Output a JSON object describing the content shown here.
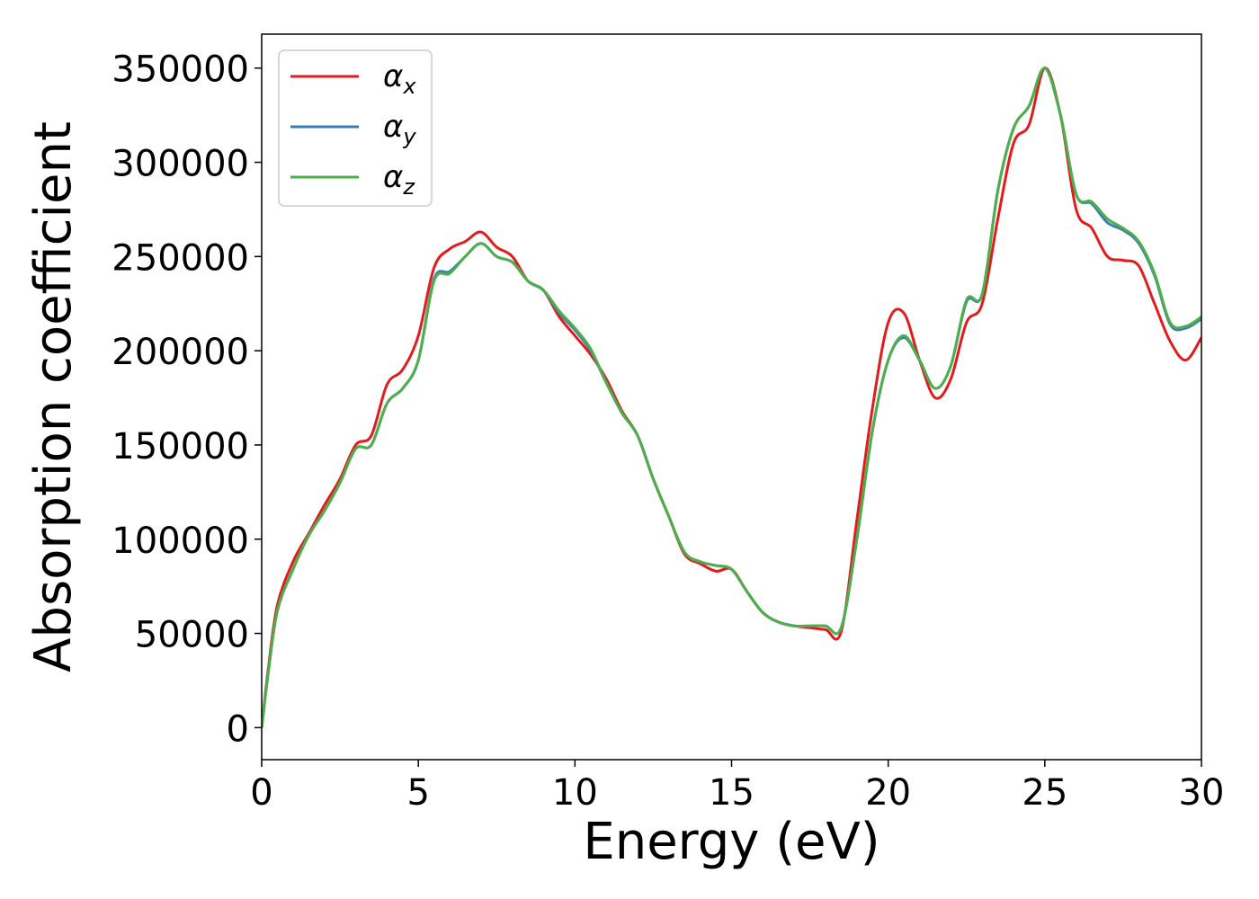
{
  "chart_data": {
    "type": "line",
    "title": "",
    "xlabel": "Energy (eV)",
    "ylabel": "Absorption coefficient",
    "xlim": [
      0,
      30
    ],
    "ylim": [
      -17000,
      368000
    ],
    "xticks": [
      0,
      5,
      10,
      15,
      20,
      25,
      30
    ],
    "yticks": [
      0,
      50000,
      100000,
      150000,
      200000,
      250000,
      300000,
      350000
    ],
    "grid": false,
    "legend_position": "top-left",
    "series": [
      {
        "name": "α",
        "subscript": "x",
        "color": "#e41a1c",
        "points": [
          [
            0,
            0
          ],
          [
            0.2,
            30000
          ],
          [
            0.5,
            65000
          ],
          [
            1,
            88000
          ],
          [
            1.5,
            103000
          ],
          [
            2,
            118000
          ],
          [
            2.5,
            132000
          ],
          [
            3,
            150000
          ],
          [
            3.5,
            155000
          ],
          [
            4,
            182000
          ],
          [
            4.5,
            190000
          ],
          [
            5,
            208000
          ],
          [
            5.5,
            244000
          ],
          [
            6,
            254000
          ],
          [
            6.5,
            258000
          ],
          [
            7,
            263000
          ],
          [
            7.5,
            255000
          ],
          [
            8,
            250000
          ],
          [
            8.5,
            237000
          ],
          [
            9,
            232000
          ],
          [
            9.5,
            218000
          ],
          [
            10,
            208000
          ],
          [
            10.5,
            198000
          ],
          [
            11,
            185000
          ],
          [
            11.5,
            168000
          ],
          [
            12,
            155000
          ],
          [
            12.5,
            132000
          ],
          [
            13,
            112000
          ],
          [
            13.5,
            92000
          ],
          [
            14,
            87000
          ],
          [
            14.5,
            83000
          ],
          [
            15,
            84000
          ],
          [
            15.5,
            72000
          ],
          [
            16,
            61000
          ],
          [
            16.5,
            56000
          ],
          [
            17,
            54000
          ],
          [
            17.5,
            53000
          ],
          [
            18,
            52000
          ],
          [
            18.5,
            51000
          ],
          [
            19,
            110000
          ],
          [
            19.5,
            170000
          ],
          [
            20,
            215000
          ],
          [
            20.5,
            220000
          ],
          [
            21,
            195000
          ],
          [
            21.5,
            175000
          ],
          [
            22,
            185000
          ],
          [
            22.5,
            215000
          ],
          [
            23,
            225000
          ],
          [
            23.5,
            270000
          ],
          [
            24,
            310000
          ],
          [
            24.5,
            320000
          ],
          [
            25,
            350000
          ],
          [
            25.5,
            325000
          ],
          [
            26,
            275000
          ],
          [
            26.5,
            265000
          ],
          [
            27,
            250000
          ],
          [
            27.5,
            248000
          ],
          [
            28,
            245000
          ],
          [
            28.5,
            225000
          ],
          [
            29,
            205000
          ],
          [
            29.5,
            195000
          ],
          [
            30,
            207000
          ]
        ]
      },
      {
        "name": "α",
        "subscript": "y",
        "color": "#377eb8",
        "points": [
          [
            0,
            0
          ],
          [
            0.2,
            28000
          ],
          [
            0.5,
            62000
          ],
          [
            1,
            84000
          ],
          [
            1.5,
            102000
          ],
          [
            2,
            115000
          ],
          [
            2.5,
            130000
          ],
          [
            3,
            148000
          ],
          [
            3.5,
            150000
          ],
          [
            4,
            172000
          ],
          [
            4.5,
            180000
          ],
          [
            5,
            195000
          ],
          [
            5.5,
            238000
          ],
          [
            6,
            242000
          ],
          [
            6.5,
            250000
          ],
          [
            7,
            257000
          ],
          [
            7.5,
            250000
          ],
          [
            8,
            247000
          ],
          [
            8.5,
            237000
          ],
          [
            9,
            232000
          ],
          [
            9.5,
            220000
          ],
          [
            10,
            211000
          ],
          [
            10.5,
            200000
          ],
          [
            11,
            183000
          ],
          [
            11.5,
            167000
          ],
          [
            12,
            155000
          ],
          [
            12.5,
            132000
          ],
          [
            13,
            112000
          ],
          [
            13.5,
            93000
          ],
          [
            14,
            88000
          ],
          [
            14.5,
            86000
          ],
          [
            15,
            84000
          ],
          [
            15.5,
            72000
          ],
          [
            16,
            61000
          ],
          [
            16.5,
            56000
          ],
          [
            17,
            54000
          ],
          [
            17.5,
            54000
          ],
          [
            18,
            54000
          ],
          [
            18.5,
            53000
          ],
          [
            19,
            100000
          ],
          [
            19.5,
            158000
          ],
          [
            20,
            195000
          ],
          [
            20.5,
            207000
          ],
          [
            21,
            195000
          ],
          [
            21.5,
            180000
          ],
          [
            22,
            192000
          ],
          [
            22.5,
            226000
          ],
          [
            23,
            230000
          ],
          [
            23.5,
            285000
          ],
          [
            24,
            318000
          ],
          [
            24.5,
            330000
          ],
          [
            25,
            350000
          ],
          [
            25.5,
            325000
          ],
          [
            26,
            283000
          ],
          [
            26.5,
            278000
          ],
          [
            27,
            268000
          ],
          [
            27.5,
            264000
          ],
          [
            28,
            257000
          ],
          [
            28.5,
            240000
          ],
          [
            29,
            214000
          ],
          [
            29.5,
            212000
          ],
          [
            30,
            217000
          ]
        ]
      },
      {
        "name": "α",
        "subscript": "z",
        "color": "#4daf4a",
        "points": [
          [
            0,
            0
          ],
          [
            0.2,
            28000
          ],
          [
            0.5,
            62000
          ],
          [
            1,
            84000
          ],
          [
            1.5,
            102000
          ],
          [
            2,
            115000
          ],
          [
            2.5,
            130000
          ],
          [
            3,
            148000
          ],
          [
            3.5,
            150000
          ],
          [
            4,
            172000
          ],
          [
            4.5,
            180000
          ],
          [
            5,
            195000
          ],
          [
            5.5,
            237000
          ],
          [
            6,
            241000
          ],
          [
            6.5,
            250000
          ],
          [
            7,
            257000
          ],
          [
            7.5,
            250000
          ],
          [
            8,
            247000
          ],
          [
            8.5,
            237000
          ],
          [
            9,
            232000
          ],
          [
            9.5,
            221000
          ],
          [
            10,
            212000
          ],
          [
            10.5,
            201000
          ],
          [
            11,
            183000
          ],
          [
            11.5,
            167000
          ],
          [
            12,
            155000
          ],
          [
            12.5,
            132000
          ],
          [
            13,
            112000
          ],
          [
            13.5,
            93000
          ],
          [
            14,
            88000
          ],
          [
            14.5,
            86000
          ],
          [
            15,
            84000
          ],
          [
            15.5,
            72000
          ],
          [
            16,
            61000
          ],
          [
            16.5,
            56000
          ],
          [
            17,
            54000
          ],
          [
            17.5,
            54000
          ],
          [
            18,
            54000
          ],
          [
            18.5,
            53000
          ],
          [
            19,
            100000
          ],
          [
            19.5,
            158000
          ],
          [
            20,
            195000
          ],
          [
            20.5,
            208000
          ],
          [
            21,
            195000
          ],
          [
            21.5,
            180000
          ],
          [
            22,
            192000
          ],
          [
            22.5,
            227000
          ],
          [
            23,
            230000
          ],
          [
            23.5,
            285000
          ],
          [
            24,
            318000
          ],
          [
            24.5,
            330000
          ],
          [
            25,
            350000
          ],
          [
            25.5,
            325000
          ],
          [
            26,
            283000
          ],
          [
            26.5,
            279000
          ],
          [
            27,
            270000
          ],
          [
            27.5,
            265000
          ],
          [
            28,
            258000
          ],
          [
            28.5,
            241000
          ],
          [
            29,
            215000
          ],
          [
            29.5,
            213000
          ],
          [
            30,
            218000
          ]
        ]
      }
    ]
  }
}
